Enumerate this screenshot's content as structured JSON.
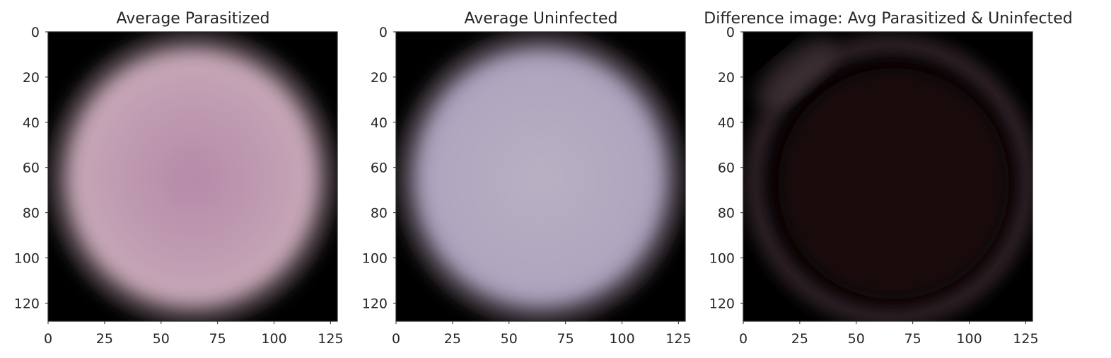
{
  "chart_data": [
    {
      "type": "heatmap",
      "title": "Average Parasitized",
      "xlim": [
        0,
        128
      ],
      "ylim": [
        128,
        0
      ],
      "x_ticks": [
        0,
        25,
        50,
        75,
        100,
        125
      ],
      "y_ticks": [
        0,
        20,
        40,
        60,
        80,
        100,
        120
      ],
      "grid": false,
      "image": {
        "description": "blurred disc",
        "center_color": "#b58aa8",
        "edge_color": "#c9aab9",
        "background_color": "#000000"
      }
    },
    {
      "type": "heatmap",
      "title": "Average Uninfected",
      "xlim": [
        0,
        128
      ],
      "ylim": [
        128,
        0
      ],
      "x_ticks": [
        0,
        25,
        50,
        75,
        100,
        125
      ],
      "y_ticks": [
        0,
        20,
        40,
        60,
        80,
        100,
        120
      ],
      "grid": false,
      "image": {
        "description": "blurred disc",
        "center_color": "#b9b0c3",
        "edge_color": "#aea2bd",
        "background_color": "#000000"
      }
    },
    {
      "type": "heatmap",
      "title": "Difference image: Avg Parasitized & Uninfected",
      "xlim": [
        0,
        128
      ],
      "ylim": [
        128,
        0
      ],
      "x_ticks": [
        0,
        25,
        50,
        75,
        100,
        125
      ],
      "y_ticks": [
        0,
        20,
        40,
        60,
        80,
        100,
        120
      ],
      "grid": false,
      "image": {
        "description": "faint ring",
        "center_color": "#1a0707",
        "edge_color": "#3a2a30",
        "background_color": "#000000"
      }
    }
  ]
}
